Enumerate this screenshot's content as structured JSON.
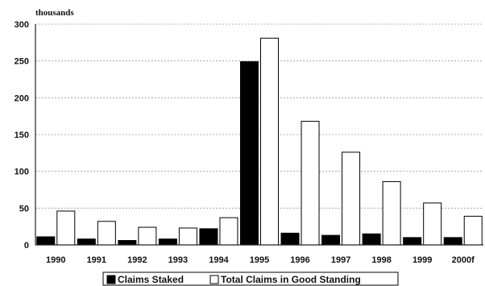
{
  "chart_data": {
    "type": "bar",
    "unit_label": "thousands",
    "categories": [
      "1990",
      "1991",
      "1992",
      "1993",
      "1994",
      "1995",
      "1996",
      "1997",
      "1998",
      "1999",
      "2000f"
    ],
    "series": [
      {
        "name": "Claims Staked",
        "color": "#000000",
        "values": [
          11,
          8,
          6,
          8,
          22,
          249,
          16,
          13,
          15,
          10,
          10
        ]
      },
      {
        "name": "Total Claims in Good Standing",
        "color": "#ffffff",
        "values": [
          46,
          32,
          24,
          23,
          37,
          281,
          168,
          126,
          86,
          57,
          39
        ]
      }
    ],
    "yticks": [
      "0",
      "50",
      "100",
      "150",
      "200",
      "250",
      "300"
    ],
    "ylim": [
      0,
      300
    ],
    "grid": true,
    "legend_position": "bottom"
  }
}
